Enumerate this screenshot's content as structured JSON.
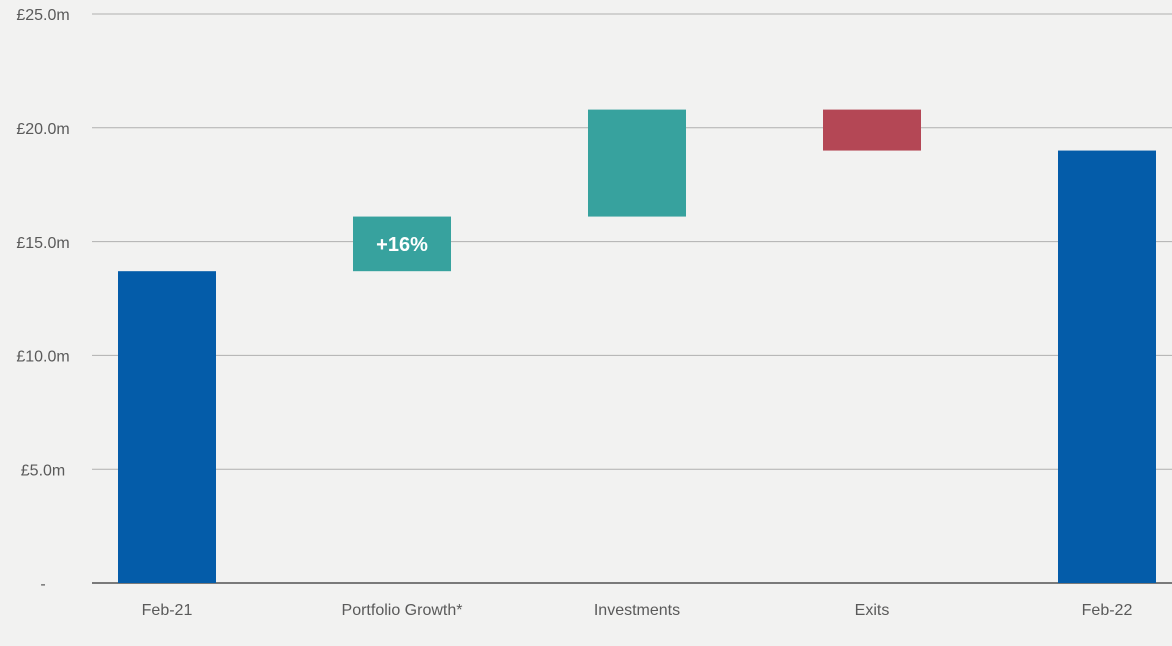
{
  "chart_data": {
    "type": "waterfall",
    "categories": [
      "Feb-21",
      "Portfolio Growth*",
      "Investments",
      "Exits",
      "Feb-22"
    ],
    "values": [
      13.7,
      2.4,
      4.7,
      -1.8,
      19.0
    ],
    "measure": [
      "absolute",
      "relative",
      "relative",
      "relative",
      "total"
    ],
    "colors": {
      "total": "#045ca9",
      "increase": "#37a29e",
      "decrease": "#b44755"
    },
    "annotations": [
      {
        "text": "+16%",
        "category": "Portfolio Growth*"
      }
    ],
    "ylim": [
      0,
      25
    ],
    "yticks": [
      {
        "value": 0,
        "label": "-"
      },
      {
        "value": 5,
        "label": "£5.0m"
      },
      {
        "value": 10,
        "label": "£10.0m"
      },
      {
        "value": 15,
        "label": "£15.0m"
      },
      {
        "value": 20,
        "label": "£20.0m"
      },
      {
        "value": 25,
        "label": "£25.0m"
      }
    ],
    "grid": true
  }
}
